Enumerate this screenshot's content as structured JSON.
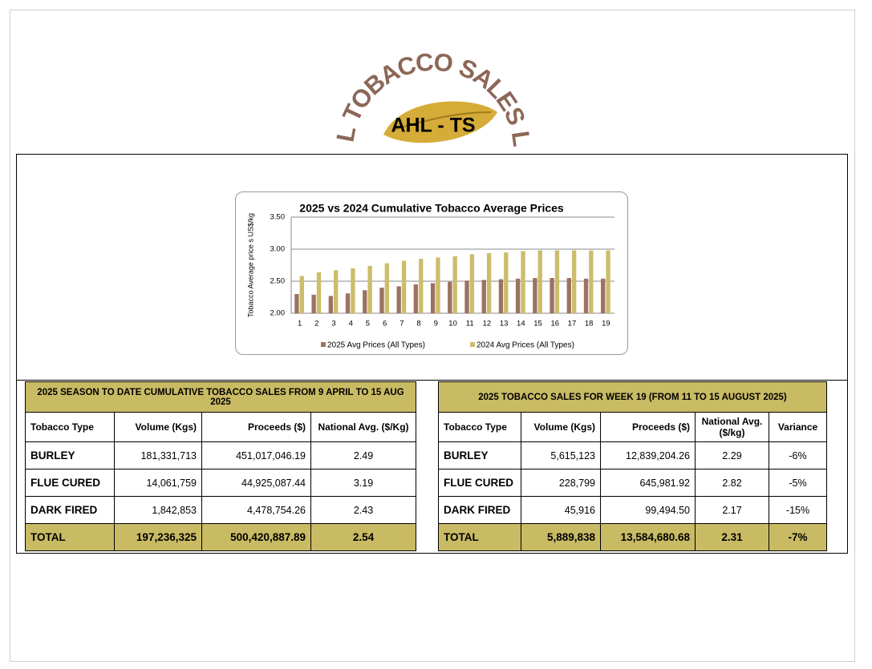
{
  "logo": {
    "arc_text": "AHL TOBACCO SALES LTD",
    "center_text": "AHL - TS"
  },
  "chart_data": {
    "type": "bar",
    "title": "2025 vs 2024 Cumulative Tobacco Average Prices",
    "y_label": "Tobacco Average price s US$/kg",
    "categories": [
      "1",
      "2",
      "3",
      "4",
      "5",
      "6",
      "7",
      "8",
      "9",
      "10",
      "11",
      "12",
      "13",
      "14",
      "15",
      "16",
      "17",
      "18",
      "19"
    ],
    "series": [
      {
        "name": "2025 Avg Prices (All Types)",
        "color": "#9c7262",
        "values": [
          2.3,
          2.29,
          2.27,
          2.31,
          2.36,
          2.4,
          2.42,
          2.45,
          2.47,
          2.49,
          2.51,
          2.52,
          2.53,
          2.54,
          2.55,
          2.55,
          2.55,
          2.54,
          2.54
        ]
      },
      {
        "name": "2024 Avg Prices (All Types)",
        "color": "#cbbd6b",
        "values": [
          2.58,
          2.64,
          2.67,
          2.7,
          2.74,
          2.78,
          2.82,
          2.85,
          2.87,
          2.89,
          2.92,
          2.94,
          2.95,
          2.97,
          2.98,
          2.98,
          2.98,
          2.98,
          2.98
        ]
      }
    ],
    "ylim": [
      2,
      3.5
    ],
    "yticks": [
      {
        "value": 2,
        "label": "2.00"
      },
      {
        "value": 2.5,
        "label": "2.50"
      },
      {
        "value": 3,
        "label": "3.00"
      },
      {
        "value": 3.5,
        "label": "3.50"
      }
    ],
    "grid": true,
    "legend": "bottom"
  },
  "tables": [
    {
      "title": "2025 SEASON TO DATE CUMULATIVE TOBACCO SALES FROM 9 APRIL TO 15 AUG 2025",
      "columns": [
        "Tobacco Type",
        "Volume (Kgs)",
        "Proceeds ($)",
        "National Avg. ($/Kg)"
      ],
      "rows": [
        [
          "BURLEY",
          "181,331,713",
          "451,017,046.19",
          "2.49"
        ],
        [
          "FLUE CURED",
          "14,061,759",
          "44,925,087.44",
          "3.19"
        ],
        [
          "DARK FIRED",
          "1,842,853",
          "4,478,754.26",
          "2.43"
        ]
      ],
      "total": [
        "TOTAL",
        "197,236,325",
        "500,420,887.89",
        "2.54"
      ]
    },
    {
      "title": "2025 TOBACCO SALES FOR WEEK 19 (FROM 11 TO 15 AUGUST 2025)",
      "columns": [
        "Tobacco Type",
        "Volume (Kgs)",
        "Proceeds ($)",
        "National Avg. ($/kg)",
        "Variance"
      ],
      "rows": [
        [
          "BURLEY",
          "5,615,123",
          "12,839,204.26",
          "2.29",
          "-6%"
        ],
        [
          "FLUE CURED",
          "228,799",
          "645,981.92",
          "2.82",
          "-5%"
        ],
        [
          "DARK FIRED",
          "45,916",
          "99,494.50",
          "2.17",
          "-15%"
        ]
      ],
      "total": [
        "TOTAL",
        "5,889,838",
        "13,584,680.68",
        "2.31",
        "-7%"
      ]
    }
  ]
}
